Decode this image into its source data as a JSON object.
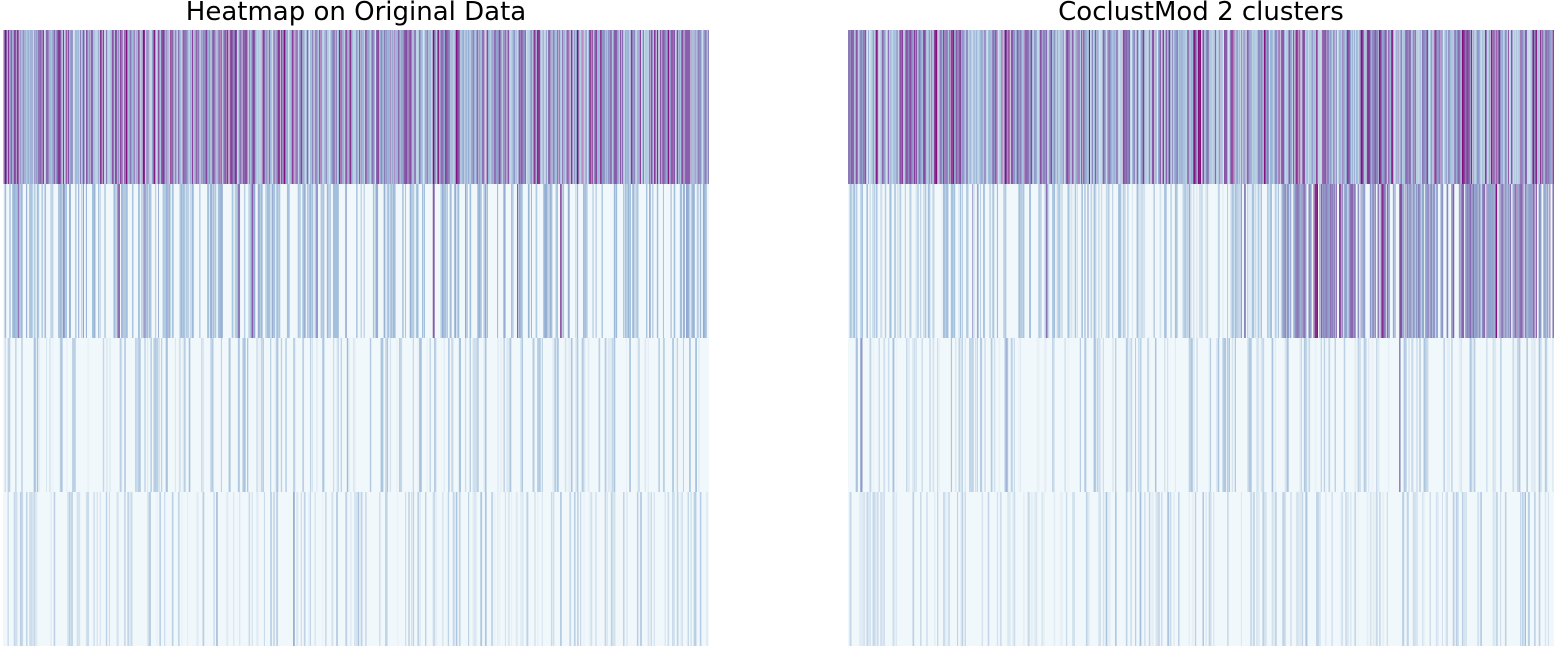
{
  "chart_data": [
    {
      "type": "heatmap",
      "title": "Heatmap on Original Data",
      "n_rows": 4,
      "n_cols": 460,
      "colormap": "BuPu",
      "colorbar": false,
      "axes_visible": false,
      "row_bands": [
        {
          "row": 1,
          "mean_intensity": 0.55,
          "spread": 0.35,
          "cluster_shift": 0.0
        },
        {
          "row": 2,
          "mean_intensity": 0.22,
          "spread": 0.3,
          "cluster_shift": 0.0
        },
        {
          "row": 3,
          "mean_intensity": 0.04,
          "spread": 0.14,
          "cluster_shift": 0.0
        },
        {
          "row": 4,
          "mean_intensity": 0.02,
          "spread": 0.1,
          "cluster_shift": 0.0
        }
      ],
      "column_order": "original",
      "seed": 7
    },
    {
      "type": "heatmap",
      "title": "CoclustMod 2 clusters",
      "n_rows": 4,
      "n_cols": 460,
      "colormap": "BuPu",
      "colorbar": false,
      "axes_visible": false,
      "row_bands": [
        {
          "row": 1,
          "mean_intensity": 0.55,
          "spread": 0.35,
          "cluster_shift": 0.0
        },
        {
          "row": 2,
          "mean_intensity": 0.22,
          "spread": 0.3,
          "cluster_shift": 0.25
        },
        {
          "row": 3,
          "mean_intensity": 0.04,
          "spread": 0.14,
          "cluster_shift": 0.0
        },
        {
          "row": 4,
          "mean_intensity": 0.02,
          "spread": 0.1,
          "cluster_shift": 0.0
        }
      ],
      "column_order": "co-clustered",
      "cluster_boundary_fraction": 0.615,
      "seed": 7
    }
  ],
  "colors": {
    "low": "#f7fcfd",
    "mid_low": "#bfd3e6",
    "mid": "#9ebcda",
    "mid_high": "#8c96c6",
    "high": "#8856a7",
    "max": "#810f7c"
  }
}
